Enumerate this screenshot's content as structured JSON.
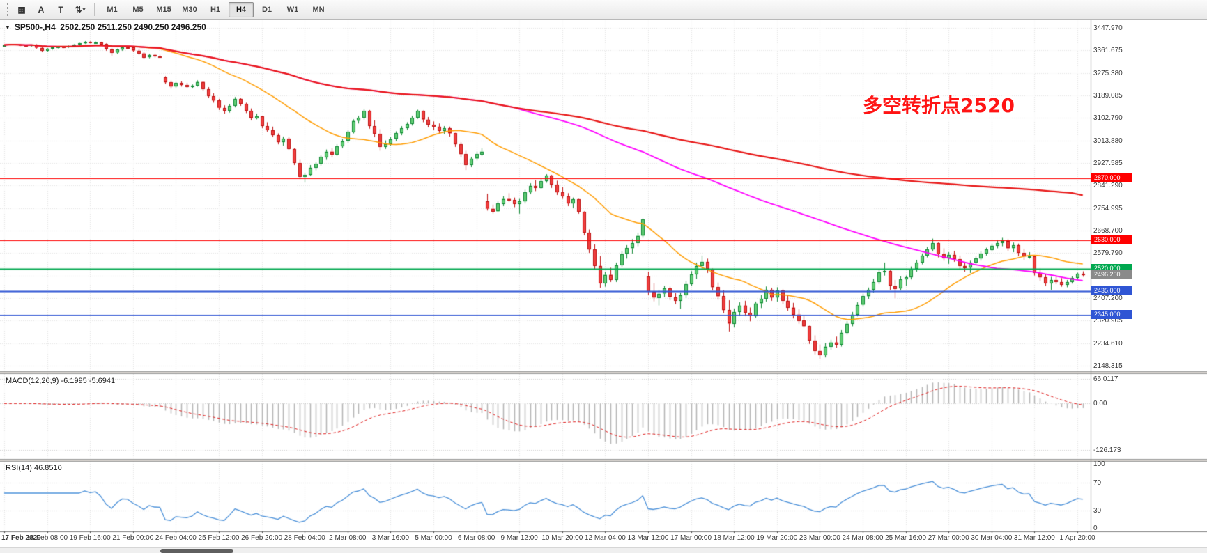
{
  "toolbar": {
    "tools": [
      {
        "name": "charts-grid",
        "glyph": "▦"
      },
      {
        "name": "annotation-a",
        "glyph": "A"
      },
      {
        "name": "text-tool",
        "glyph": "T"
      },
      {
        "name": "scale-tool",
        "glyph": "⇅",
        "caret": "▾"
      }
    ],
    "timeframes": [
      "M1",
      "M5",
      "M15",
      "M30",
      "H1",
      "H4",
      "D1",
      "W1",
      "MN"
    ],
    "active_timeframe": "H4"
  },
  "chart_ui": {
    "collapse_icon": "▼"
  },
  "chart_data": {
    "type": "candlestick",
    "symbol": "SP500-",
    "timeframe": "H4",
    "title_text": "SP500-,H4  2502.250 2511.250 2490.250 2496.250",
    "ohlc_display": {
      "open": "2502.250",
      "high": "2511.250",
      "low": "2490.250",
      "close": "2496.250"
    },
    "annotation": {
      "text": "多空转折点2520",
      "color": "#ff1414"
    },
    "price_axis": {
      "top_label_price": 3447.97,
      "bottom_label_price": 2148.315,
      "labels": [
        "3447.970",
        "3361.675",
        "3275.380",
        "3189.085",
        "3102.790",
        "3013.880",
        "2927.585",
        "2841.290",
        "2754.995",
        "2668.700",
        "2579.790",
        null,
        "2407.200",
        "2320.905",
        "2234.610",
        "2148.315"
      ]
    },
    "time_axis": {
      "bars_per_label": 8,
      "labels": [
        "17 Feb 2020",
        "18 Feb 08:00",
        "19 Feb 16:00",
        "21 Feb 00:00",
        "24 Feb 04:00",
        "25 Feb 12:00",
        "26 Feb 20:00",
        "28 Feb 04:00",
        "2 Mar 08:00",
        "3 Mar 16:00",
        "5 Mar 00:00",
        "6 Mar 08:00",
        "9 Mar 12:00",
        "10 Mar 20:00",
        "12 Mar 04:00",
        "13 Mar 12:00",
        "17 Mar 00:00",
        "18 Mar 12:00",
        "19 Mar 20:00",
        "23 Mar 00:00",
        "24 Mar 08:00",
        "25 Mar 16:00",
        "27 Mar 00:00",
        "30 Mar 04:00",
        "31 Mar 12:00",
        "1 Apr 20:00"
      ]
    },
    "candle_colors": {
      "up_fill": "#61cd74",
      "up_border": "#128a36",
      "down_fill": "#ef3e3e",
      "down_border": "#bf1212"
    },
    "moving_averages": [
      {
        "name": "ma-fast",
        "period": 24,
        "color": "#ff9c00",
        "width": 1.5
      },
      {
        "name": "ma-medium",
        "period": 96,
        "color": "#ff00ff",
        "width": 1.8
      },
      {
        "name": "ma-slow",
        "period": 200,
        "color": "#e81717",
        "width": 2.2
      }
    ],
    "horizontal_lines": [
      {
        "price": 2870,
        "label": "2870.000",
        "color": "#ff0000",
        "width": 1.2
      },
      {
        "price": 2630,
        "label": "2630.000",
        "color": "#ff0000",
        "width": 1.2
      },
      {
        "price": 2520,
        "label": "2520.000",
        "color": "#00a84f",
        "width": 2.2
      },
      {
        "price": 2435,
        "label": "2435.000",
        "color": "#2f55d4",
        "width": 2.0
      },
      {
        "price": 2345,
        "label": "2345.000",
        "color": "#2f55d4",
        "width": 1.2
      }
    ],
    "current_price": {
      "value": 2496.25,
      "label": "2496.250",
      "tag_color": "#8a8a8a"
    },
    "indicators": [
      {
        "type": "macd",
        "label_text": "MACD(12,26,9) -6.1995 -5.6941",
        "fast": 12,
        "slow": 26,
        "signal": 9,
        "range": [
          -150,
          80
        ],
        "axis_labels": [
          {
            "text": "66.0117",
            "value": 66.0117
          },
          {
            "text": "0.00",
            "value": 0
          },
          {
            "text": "-126.173",
            "value": -126.173
          }
        ],
        "histogram_color": "#b4b4b4",
        "signal_color": "#e02020"
      },
      {
        "type": "rsi",
        "label_text": "RSI(14) 46.8510",
        "period": 14,
        "range": [
          0,
          100
        ],
        "levels": [
          70,
          30
        ],
        "axis_labels": [
          {
            "text": "100",
            "value": 100
          },
          {
            "text": "70",
            "value": 70
          },
          {
            "text": "30",
            "value": 30
          },
          {
            "text": "0",
            "value": 0
          }
        ],
        "line_color": "#4a90d9"
      }
    ],
    "candles": [
      [
        3380,
        3384,
        3377,
        3382
      ],
      [
        3382,
        3386,
        3380,
        3385
      ],
      [
        3385,
        3386,
        3381,
        3383
      ],
      [
        3383,
        3385,
        3378,
        3380
      ],
      [
        3380,
        3383,
        3375,
        3378
      ],
      [
        3378,
        3384,
        3376,
        3383
      ],
      [
        3383,
        3385,
        3368,
        3371
      ],
      [
        3371,
        3374,
        3355,
        3360
      ],
      [
        3360,
        3370,
        3357,
        3368
      ],
      [
        3368,
        3375,
        3364,
        3373
      ],
      [
        3373,
        3378,
        3369,
        3375
      ],
      [
        3375,
        3377,
        3370,
        3373
      ],
      [
        3373,
        3380,
        3371,
        3378
      ],
      [
        3378,
        3385,
        3375,
        3383
      ],
      [
        3383,
        3390,
        3381,
        3388
      ],
      [
        3388,
        3397,
        3386,
        3394
      ],
      [
        3394,
        3396,
        3388,
        3391
      ],
      [
        3391,
        3395,
        3387,
        3393
      ],
      [
        3393,
        3394,
        3381,
        3385
      ],
      [
        3385,
        3388,
        3360,
        3366
      ],
      [
        3366,
        3370,
        3341,
        3352
      ],
      [
        3352,
        3368,
        3348,
        3364
      ],
      [
        3364,
        3376,
        3360,
        3373
      ],
      [
        3373,
        3377,
        3366,
        3372
      ],
      [
        3372,
        3374,
        3356,
        3360
      ],
      [
        3360,
        3365,
        3344,
        3350
      ],
      [
        3350,
        3354,
        3328,
        3335
      ],
      [
        3335,
        3348,
        3331,
        3344
      ],
      [
        3344,
        3349,
        3334,
        3338
      ],
      [
        3338,
        3344,
        3333,
        3337
      ],
      [
        3257,
        3262,
        3232,
        3238
      ],
      [
        3238,
        3245,
        3214,
        3222
      ],
      [
        3222,
        3240,
        3218,
        3235
      ],
      [
        3235,
        3242,
        3222,
        3228
      ],
      [
        3228,
        3236,
        3216,
        3221
      ],
      [
        3221,
        3230,
        3215,
        3226
      ],
      [
        3226,
        3246,
        3222,
        3240
      ],
      [
        3240,
        3243,
        3205,
        3212
      ],
      [
        3212,
        3220,
        3178,
        3185
      ],
      [
        3185,
        3196,
        3160,
        3168
      ],
      [
        3168,
        3175,
        3132,
        3140
      ],
      [
        3140,
        3150,
        3118,
        3128
      ],
      [
        3128,
        3155,
        3122,
        3148
      ],
      [
        3148,
        3182,
        3142,
        3175
      ],
      [
        3175,
        3178,
        3148,
        3155
      ],
      [
        3155,
        3160,
        3120,
        3128
      ],
      [
        3128,
        3138,
        3092,
        3100
      ],
      [
        3100,
        3118,
        3096,
        3108
      ],
      [
        3108,
        3110,
        3062,
        3070
      ],
      [
        3070,
        3085,
        3048,
        3055
      ],
      [
        3055,
        3068,
        3028,
        3035
      ],
      [
        3035,
        3042,
        3000,
        3008
      ],
      [
        3008,
        3030,
        2995,
        3022
      ],
      [
        3022,
        3028,
        2977,
        2982
      ],
      [
        2982,
        2985,
        2920,
        2928
      ],
      [
        2928,
        2940,
        2866,
        2875
      ],
      [
        2875,
        2890,
        2853,
        2882
      ],
      [
        2882,
        2920,
        2878,
        2910
      ],
      [
        2910,
        2932,
        2900,
        2925
      ],
      [
        2925,
        2958,
        2918,
        2951
      ],
      [
        2951,
        2980,
        2940,
        2972
      ],
      [
        2972,
        2985,
        2950,
        2960
      ],
      [
        2960,
        3000,
        2955,
        2992
      ],
      [
        2992,
        3020,
        2985,
        3012
      ],
      [
        3012,
        3055,
        3005,
        3048
      ],
      [
        3048,
        3096,
        3042,
        3090
      ],
      [
        3090,
        3110,
        3080,
        3102
      ],
      [
        3102,
        3136,
        3095,
        3128
      ],
      [
        3128,
        3132,
        3060,
        3070
      ],
      [
        3070,
        3092,
        3028,
        3040
      ],
      [
        3040,
        3058,
        2975,
        2990
      ],
      [
        2990,
        3015,
        2982,
        3000
      ],
      [
        3000,
        3028,
        2995,
        3020
      ],
      [
        3020,
        3050,
        3012,
        3042
      ],
      [
        3042,
        3070,
        3035,
        3062
      ],
      [
        3062,
        3085,
        3055,
        3078
      ],
      [
        3078,
        3110,
        3072,
        3102
      ],
      [
        3102,
        3133,
        3098,
        3128
      ],
      [
        3128,
        3130,
        3085,
        3095
      ],
      [
        3095,
        3105,
        3065,
        3075
      ],
      [
        3075,
        3088,
        3055,
        3068
      ],
      [
        3068,
        3080,
        3042,
        3052
      ],
      [
        3052,
        3070,
        3040,
        3062
      ],
      [
        3062,
        3068,
        3030,
        3042
      ],
      [
        3042,
        3044,
        2990,
        3000
      ],
      [
        3000,
        3008,
        2950,
        2962
      ],
      [
        2962,
        2975,
        2901,
        2920
      ],
      [
        2920,
        2952,
        2912,
        2945
      ],
      [
        2945,
        2972,
        2938,
        2962
      ],
      [
        2962,
        2985,
        2955,
        2972
      ],
      [
        2780,
        2810,
        2745,
        2752
      ],
      [
        2752,
        2768,
        2734,
        2742
      ],
      [
        2742,
        2780,
        2738,
        2772
      ],
      [
        2772,
        2800,
        2762,
        2790
      ],
      [
        2790,
        2812,
        2778,
        2785
      ],
      [
        2785,
        2795,
        2758,
        2770
      ],
      [
        2770,
        2790,
        2733,
        2780
      ],
      [
        2780,
        2825,
        2772,
        2815
      ],
      [
        2815,
        2850,
        2808,
        2840
      ],
      [
        2840,
        2862,
        2820,
        2832
      ],
      [
        2832,
        2870,
        2828,
        2858
      ],
      [
        2858,
        2885,
        2852,
        2880
      ],
      [
        2880,
        2882,
        2832,
        2845
      ],
      [
        2845,
        2860,
        2805,
        2815
      ],
      [
        2815,
        2835,
        2790,
        2800
      ],
      [
        2800,
        2812,
        2762,
        2772
      ],
      [
        2772,
        2795,
        2755,
        2788
      ],
      [
        2788,
        2790,
        2733,
        2740
      ],
      [
        2740,
        2742,
        2650,
        2660
      ],
      [
        2660,
        2672,
        2582,
        2595
      ],
      [
        2595,
        2615,
        2520,
        2532
      ],
      [
        2532,
        2570,
        2448,
        2465
      ],
      [
        2465,
        2510,
        2452,
        2498
      ],
      [
        2498,
        2525,
        2470,
        2480
      ],
      [
        2480,
        2545,
        2470,
        2535
      ],
      [
        2535,
        2590,
        2528,
        2578
      ],
      [
        2578,
        2612,
        2560,
        2600
      ],
      [
        2600,
        2635,
        2580,
        2620
      ],
      [
        2620,
        2660,
        2608,
        2648
      ],
      [
        2648,
        2715,
        2640,
        2710
      ],
      [
        2490,
        2510,
        2420,
        2432
      ],
      [
        2432,
        2465,
        2396,
        2410
      ],
      [
        2410,
        2440,
        2380,
        2425
      ],
      [
        2425,
        2455,
        2412,
        2445
      ],
      [
        2445,
        2452,
        2400,
        2412
      ],
      [
        2412,
        2428,
        2385,
        2398
      ],
      [
        2398,
        2430,
        2367,
        2420
      ],
      [
        2420,
        2475,
        2408,
        2462
      ],
      [
        2462,
        2512,
        2455,
        2500
      ],
      [
        2500,
        2545,
        2482,
        2532
      ],
      [
        2532,
        2572,
        2520,
        2548
      ],
      [
        2548,
        2560,
        2505,
        2520
      ],
      [
        2520,
        2522,
        2438,
        2450
      ],
      [
        2450,
        2468,
        2402,
        2415
      ],
      [
        2415,
        2438,
        2350,
        2362
      ],
      [
        2362,
        2400,
        2280,
        2310
      ],
      [
        2310,
        2368,
        2295,
        2355
      ],
      [
        2355,
        2392,
        2340,
        2380
      ],
      [
        2380,
        2398,
        2340,
        2352
      ],
      [
        2352,
        2372,
        2319,
        2340
      ],
      [
        2340,
        2395,
        2332,
        2388
      ],
      [
        2388,
        2420,
        2370,
        2405
      ],
      [
        2405,
        2453,
        2395,
        2440
      ],
      [
        2440,
        2448,
        2398,
        2410
      ],
      [
        2410,
        2450,
        2395,
        2438
      ],
      [
        2438,
        2442,
        2385,
        2398
      ],
      [
        2398,
        2418,
        2360,
        2372
      ],
      [
        2372,
        2390,
        2330,
        2345
      ],
      [
        2345,
        2365,
        2310,
        2322
      ],
      [
        2322,
        2340,
        2295,
        2300
      ],
      [
        2300,
        2302,
        2232,
        2245
      ],
      [
        2245,
        2265,
        2192,
        2205
      ],
      [
        2205,
        2230,
        2174,
        2190
      ],
      [
        2190,
        2235,
        2180,
        2222
      ],
      [
        2222,
        2248,
        2210,
        2238
      ],
      [
        2238,
        2260,
        2218,
        2230
      ],
      [
        2230,
        2285,
        2222,
        2275
      ],
      [
        2275,
        2320,
        2268,
        2310
      ],
      [
        2310,
        2355,
        2300,
        2345
      ],
      [
        2345,
        2392,
        2338,
        2382
      ],
      [
        2382,
        2425,
        2375,
        2415
      ],
      [
        2415,
        2449,
        2405,
        2440
      ],
      [
        2440,
        2482,
        2430,
        2470
      ],
      [
        2470,
        2520,
        2462,
        2508
      ],
      [
        2508,
        2545,
        2495,
        2512
      ],
      [
        2512,
        2515,
        2440,
        2455
      ],
      [
        2455,
        2478,
        2407,
        2445
      ],
      [
        2445,
        2492,
        2438,
        2480
      ],
      [
        2480,
        2495,
        2455,
        2488
      ],
      [
        2488,
        2530,
        2480,
        2520
      ],
      [
        2520,
        2555,
        2510,
        2545
      ],
      [
        2545,
        2580,
        2538,
        2572
      ],
      [
        2572,
        2605,
        2565,
        2595
      ],
      [
        2595,
        2637,
        2588,
        2620
      ],
      [
        2620,
        2622,
        2565,
        2578
      ],
      [
        2578,
        2600,
        2552,
        2562
      ],
      [
        2562,
        2585,
        2540,
        2575
      ],
      [
        2575,
        2590,
        2548,
        2558
      ],
      [
        2558,
        2572,
        2520,
        2532
      ],
      [
        2532,
        2548,
        2510,
        2525
      ],
      [
        2525,
        2552,
        2505,
        2545
      ],
      [
        2545,
        2568,
        2535,
        2560
      ],
      [
        2560,
        2588,
        2552,
        2580
      ],
      [
        2580,
        2602,
        2572,
        2595
      ],
      [
        2595,
        2618,
        2588,
        2610
      ],
      [
        2610,
        2631,
        2600,
        2620
      ],
      [
        2620,
        2640,
        2608,
        2628
      ],
      [
        2628,
        2635,
        2590,
        2600
      ],
      [
        2600,
        2622,
        2585,
        2612
      ],
      [
        2612,
        2618,
        2570,
        2582
      ],
      [
        2582,
        2598,
        2555,
        2568
      ],
      [
        2568,
        2585,
        2560,
        2570
      ],
      [
        2570,
        2572,
        2495,
        2505
      ],
      [
        2505,
        2522,
        2475,
        2488
      ],
      [
        2488,
        2502,
        2455,
        2465
      ],
      [
        2465,
        2490,
        2440,
        2478
      ],
      [
        2478,
        2495,
        2462,
        2470
      ],
      [
        2470,
        2485,
        2452,
        2460
      ],
      [
        2460,
        2478,
        2450,
        2470
      ],
      [
        2470,
        2492,
        2464,
        2486
      ],
      [
        2486,
        2506,
        2480,
        2502.25
      ],
      [
        2502.25,
        2511.25,
        2490.25,
        2496.25
      ]
    ]
  }
}
